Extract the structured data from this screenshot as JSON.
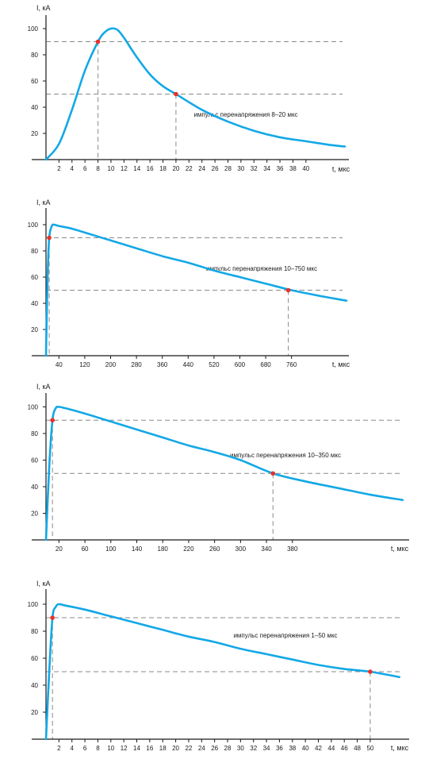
{
  "colors": {
    "curve": "#13a8e6",
    "marker": "#e8322b",
    "guide": "#8a8a8a",
    "axis": "#1a1a1a"
  },
  "chart_data": [
    {
      "type": "line",
      "ylabel": "I, кА",
      "xlabel": "t, мкс",
      "annotation": "импульс перенапряжения 8–20 мкс",
      "xlim": [
        0,
        46
      ],
      "ylim": [
        0,
        110
      ],
      "yticks": [
        20,
        40,
        60,
        80,
        100
      ],
      "xticks": [
        2,
        4,
        6,
        8,
        10,
        12,
        14,
        16,
        18,
        20,
        22,
        24,
        26,
        28,
        30,
        32,
        34,
        36,
        38,
        40
      ],
      "series": [
        {
          "x": [
            0,
            2,
            4,
            6,
            8,
            9,
            10,
            11,
            12,
            14,
            16,
            18,
            20,
            24,
            28,
            32,
            36,
            40,
            44,
            46
          ],
          "y": [
            0,
            12,
            38,
            68,
            90,
            97,
            100,
            99,
            93,
            78,
            65,
            56,
            50,
            38,
            29,
            22,
            17,
            14,
            11,
            10
          ]
        }
      ],
      "markers": [
        {
          "x": 8,
          "y": 90
        },
        {
          "x": 20,
          "y": 50
        }
      ],
      "hlines": [
        90,
        50
      ]
    },
    {
      "type": "line",
      "ylabel": "I, кА",
      "xlabel": "t, мкс",
      "annotation": "импульс перенапряжения 10–750 мкс",
      "xlim": [
        0,
        940
      ],
      "ylim": [
        0,
        110
      ],
      "yticks": [
        20,
        40,
        60,
        80,
        100
      ],
      "xticks": [
        40,
        120,
        200,
        280,
        360,
        440,
        520,
        600,
        680,
        760
      ],
      "series": [
        {
          "x": [
            0,
            5,
            10,
            18,
            25,
            40,
            80,
            120,
            200,
            280,
            360,
            440,
            520,
            600,
            680,
            760,
            840,
            930
          ],
          "y": [
            0,
            60,
            90,
            99,
            100,
            99,
            97,
            94,
            88,
            82,
            76,
            71,
            65,
            60,
            55,
            50,
            46,
            42
          ]
        }
      ],
      "markers": [
        {
          "x": 10,
          "y": 90
        },
        {
          "x": 750,
          "y": 50
        }
      ],
      "hlines": [
        90,
        50
      ]
    },
    {
      "type": "line",
      "ylabel": "I, кА",
      "xlabel": "t, мкс",
      "annotation": "импульс перенапряжения 10–350 мкс",
      "xlim": [
        0,
        560
      ],
      "ylim": [
        0,
        110
      ],
      "yticks": [
        20,
        40,
        60,
        80,
        100
      ],
      "xticks": [
        20,
        60,
        100,
        140,
        180,
        220,
        260,
        300,
        340,
        380
      ],
      "series": [
        {
          "x": [
            0,
            5,
            10,
            15,
            20,
            30,
            60,
            100,
            140,
            180,
            220,
            260,
            300,
            350,
            400,
            450,
            500,
            550
          ],
          "y": [
            0,
            55,
            90,
            99,
            100,
            99,
            95,
            89,
            83,
            77,
            71,
            66,
            60,
            50,
            44,
            39,
            34,
            30
          ]
        }
      ],
      "markers": [
        {
          "x": 10,
          "y": 90
        },
        {
          "x": 350,
          "y": 50
        }
      ],
      "hlines": [
        90,
        50
      ]
    },
    {
      "type": "line",
      "ylabel": "I, кА",
      "xlabel": "t, мкс",
      "annotation": "импульс перенапряжения 1–50 мкс",
      "xlim": [
        0,
        56
      ],
      "ylim": [
        0,
        110
      ],
      "yticks": [
        20,
        40,
        60,
        80,
        100
      ],
      "xticks": [
        2,
        4,
        6,
        8,
        10,
        12,
        14,
        16,
        18,
        20,
        22,
        24,
        26,
        28,
        30,
        32,
        34,
        36,
        38,
        40,
        42,
        44,
        46,
        48,
        50
      ],
      "series": [
        {
          "x": [
            0,
            0.5,
            1,
            1.5,
            2,
            3,
            6,
            10,
            14,
            18,
            22,
            26,
            30,
            34,
            38,
            42,
            46,
            50,
            54.5
          ],
          "y": [
            0,
            50,
            90,
            98,
            100,
            99,
            96,
            91,
            86,
            81,
            76,
            72,
            67,
            63,
            59,
            55,
            52,
            50,
            46
          ]
        }
      ],
      "markers": [
        {
          "x": 1,
          "y": 90
        },
        {
          "x": 50,
          "y": 50
        }
      ],
      "hlines": [
        90,
        50
      ]
    }
  ]
}
